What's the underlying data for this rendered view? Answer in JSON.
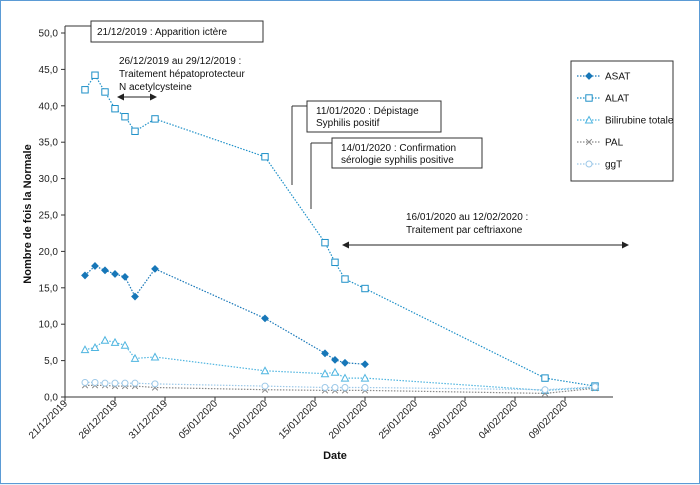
{
  "chart_data": {
    "type": "line",
    "xlabel": "Date",
    "ylabel": "Nombre de fois la Normale",
    "ylim": [
      0,
      50
    ],
    "yticks": [
      "0,0",
      "5,0",
      "10,0",
      "15,0",
      "20,0",
      "25,0",
      "30,0",
      "35,0",
      "40,0",
      "45,0",
      "50,0"
    ],
    "xticks": [
      {
        "date": "2019-12-21",
        "label": "21/12/2019"
      },
      {
        "date": "2019-12-26",
        "label": "26/12/2019"
      },
      {
        "date": "2019-12-31",
        "label": "31/12/2019"
      },
      {
        "date": "2020-01-05",
        "label": "05/01/2020"
      },
      {
        "date": "2020-01-10",
        "label": "10/01/2020"
      },
      {
        "date": "2020-01-15",
        "label": "15/01/2020"
      },
      {
        "date": "2020-01-20",
        "label": "20/01/2020"
      },
      {
        "date": "2020-01-25",
        "label": "25/01/2020"
      },
      {
        "date": "2020-01-30",
        "label": "30/01/2020"
      },
      {
        "date": "2020-02-04",
        "label": "04/02/2020"
      },
      {
        "date": "2020-02-09",
        "label": "09/02/2020"
      }
    ],
    "xlim": [
      "2019-12-21",
      "2020-02-13"
    ],
    "grid": false,
    "legend": "right",
    "series": [
      {
        "name": "ASAT",
        "marker": "diamond-filled",
        "color": "#1777b8",
        "points": [
          [
            "2019-12-23",
            16.7
          ],
          [
            "2019-12-24",
            18.0
          ],
          [
            "2019-12-25",
            17.4
          ],
          [
            "2019-12-26",
            16.9
          ],
          [
            "2019-12-27",
            16.5
          ],
          [
            "2019-12-28",
            13.8
          ],
          [
            "2019-12-30",
            17.6
          ],
          [
            "2020-01-10",
            10.8
          ],
          [
            "2020-01-16",
            6.0
          ],
          [
            "2020-01-17",
            5.1
          ],
          [
            "2020-01-18",
            4.7
          ],
          [
            "2020-01-20",
            4.5
          ]
        ]
      },
      {
        "name": "ALAT",
        "marker": "square-open",
        "color": "#1e90c8",
        "points": [
          [
            "2019-12-23",
            42.2
          ],
          [
            "2019-12-24",
            44.2
          ],
          [
            "2019-12-25",
            41.9
          ],
          [
            "2019-12-26",
            39.6
          ],
          [
            "2019-12-27",
            38.5
          ],
          [
            "2019-12-28",
            36.5
          ],
          [
            "2019-12-30",
            38.2
          ],
          [
            "2020-01-10",
            33.0
          ],
          [
            "2020-01-16",
            21.2
          ],
          [
            "2020-01-17",
            18.5
          ],
          [
            "2020-01-18",
            16.2
          ],
          [
            "2020-01-20",
            14.9
          ],
          [
            "2020-02-07",
            2.6
          ],
          [
            "2020-02-12",
            1.5
          ]
        ]
      },
      {
        "name": "Bilirubine totale",
        "marker": "triangle-open",
        "color": "#4fb5e0",
        "points": [
          [
            "2019-12-23",
            6.5
          ],
          [
            "2019-12-24",
            6.8
          ],
          [
            "2019-12-25",
            7.8
          ],
          [
            "2019-12-26",
            7.5
          ],
          [
            "2019-12-27",
            7.1
          ],
          [
            "2019-12-28",
            5.3
          ],
          [
            "2019-12-30",
            5.5
          ],
          [
            "2020-01-10",
            3.6
          ],
          [
            "2020-01-16",
            3.2
          ],
          [
            "2020-01-17",
            3.4
          ],
          [
            "2020-01-18",
            2.6
          ],
          [
            "2020-01-20",
            2.6
          ],
          [
            "2020-02-07",
            0.9
          ],
          [
            "2020-02-12",
            1.3
          ]
        ]
      },
      {
        "name": "PAL",
        "marker": "x",
        "color": "#888888",
        "points": [
          [
            "2019-12-23",
            1.6
          ],
          [
            "2019-12-24",
            1.6
          ],
          [
            "2019-12-25",
            1.6
          ],
          [
            "2019-12-26",
            1.5
          ],
          [
            "2019-12-27",
            1.5
          ],
          [
            "2019-12-28",
            1.5
          ],
          [
            "2019-12-30",
            1.3
          ],
          [
            "2020-01-10",
            1.0
          ],
          [
            "2020-01-16",
            0.9
          ],
          [
            "2020-01-17",
            0.9
          ],
          [
            "2020-01-18",
            0.9
          ],
          [
            "2020-01-20",
            0.9
          ],
          [
            "2020-02-07",
            0.5
          ],
          [
            "2020-02-12",
            1.2
          ]
        ]
      },
      {
        "name": "ggT",
        "marker": "circle-open",
        "color": "#9cc8e8",
        "points": [
          [
            "2019-12-23",
            2.0
          ],
          [
            "2019-12-24",
            2.0
          ],
          [
            "2019-12-25",
            1.9
          ],
          [
            "2019-12-26",
            1.9
          ],
          [
            "2019-12-27",
            1.9
          ],
          [
            "2019-12-28",
            1.9
          ],
          [
            "2019-12-30",
            1.8
          ],
          [
            "2020-01-10",
            1.5
          ],
          [
            "2020-01-16",
            1.3
          ],
          [
            "2020-01-17",
            1.3
          ],
          [
            "2020-01-18",
            1.3
          ],
          [
            "2020-01-20",
            1.3
          ],
          [
            "2020-02-07",
            1.0
          ],
          [
            "2020-02-12",
            1.4
          ]
        ]
      }
    ],
    "annotations": {
      "ictere": "21/12/2019 : Apparition ictère",
      "hepato_line1": "26/12/2019 au 29/12/2019 :",
      "hepato_line2": "Traitement hépatoprotecteur",
      "hepato_line3": "N acetylcysteine",
      "depistage_line1": "11/01/2020 : Dépistage",
      "depistage_line2": "Syphilis positif",
      "confirm_line1": "14/01/2020 : Confirmation",
      "confirm_line2": "sérologie syphilis positive",
      "ceftri_line1": "16/01/2020 au 12/02/2020 :",
      "ceftri_line2": "Traitement par ceftriaxone"
    }
  }
}
